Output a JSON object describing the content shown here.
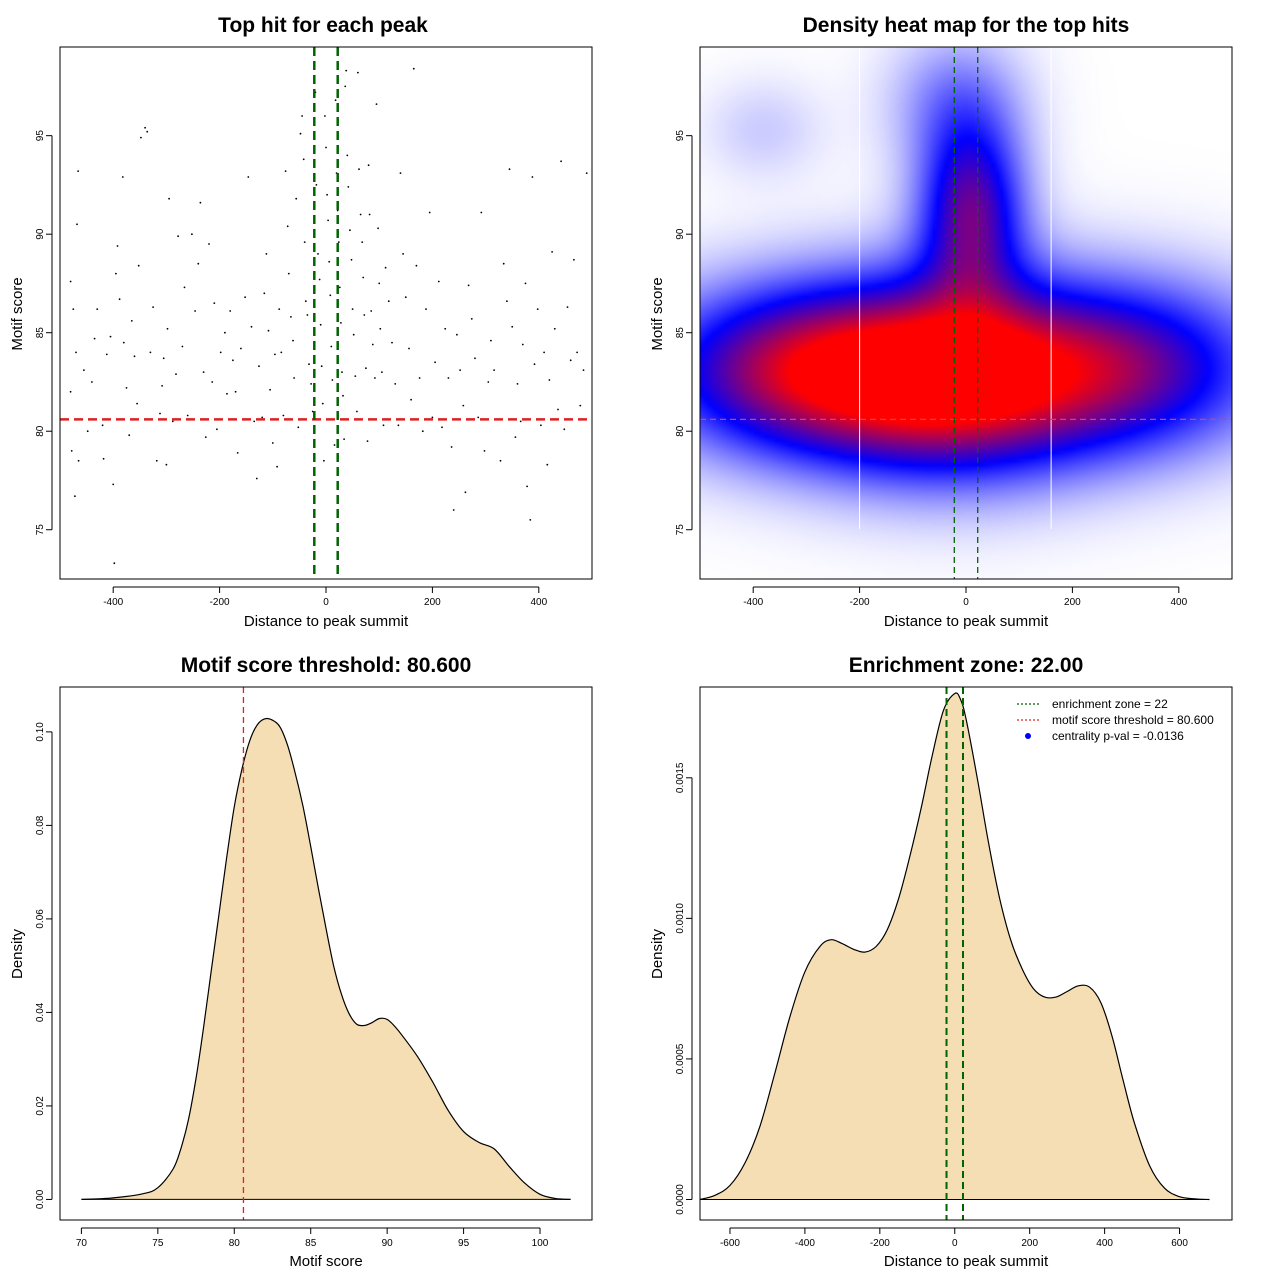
{
  "chart_data": [
    {
      "type": "scatter",
      "title": "Top hit for each peak",
      "xlabel": "Distance to peak summit",
      "ylabel": "Motif score",
      "xlim": [
        -500,
        500
      ],
      "ylim": [
        72.5,
        99.5
      ],
      "xticks": [
        -400,
        -200,
        0,
        200,
        400
      ],
      "yticks": [
        75,
        80,
        85,
        90,
        95
      ],
      "grid": false,
      "threshold": 80.6,
      "enrichment_zone": [
        -22,
        22
      ],
      "points": [
        [
          -472,
          76.7
        ],
        [
          -478,
          79.0
        ],
        [
          -465,
          78.5
        ],
        [
          -458,
          80.6
        ],
        [
          -480,
          82.0
        ],
        [
          -470,
          84.0
        ],
        [
          -475,
          86.2
        ],
        [
          -480,
          87.6
        ],
        [
          -468,
          90.5
        ],
        [
          -466,
          93.2
        ],
        [
          -455,
          83.1
        ],
        [
          -448,
          80.0
        ],
        [
          -440,
          82.5
        ],
        [
          -435,
          84.7
        ],
        [
          -430,
          86.2
        ],
        [
          -420,
          80.3
        ],
        [
          -418,
          78.6
        ],
        [
          -412,
          83.9
        ],
        [
          -405,
          84.8
        ],
        [
          -400,
          77.3
        ],
        [
          -398,
          73.3
        ],
        [
          -395,
          88.0
        ],
        [
          -392,
          89.4
        ],
        [
          -388,
          86.7
        ],
        [
          -382,
          92.9
        ],
        [
          -380,
          84.5
        ],
        [
          -375,
          82.2
        ],
        [
          -370,
          79.8
        ],
        [
          -365,
          85.6
        ],
        [
          -360,
          83.8
        ],
        [
          -355,
          81.4
        ],
        [
          -352,
          88.4
        ],
        [
          -348,
          94.9
        ],
        [
          -340,
          95.4
        ],
        [
          -336,
          95.2
        ],
        [
          -330,
          84.0
        ],
        [
          -325,
          86.3
        ],
        [
          -318,
          78.5
        ],
        [
          -312,
          80.9
        ],
        [
          -308,
          82.3
        ],
        [
          -305,
          83.7
        ],
        [
          -300,
          78.3
        ],
        [
          -298,
          85.2
        ],
        [
          -295,
          91.8
        ],
        [
          -288,
          80.5
        ],
        [
          -282,
          82.9
        ],
        [
          -278,
          89.9
        ],
        [
          -270,
          84.3
        ],
        [
          -266,
          87.3
        ],
        [
          -260,
          80.8
        ],
        [
          -252,
          90.0
        ],
        [
          -246,
          86.1
        ],
        [
          -240,
          88.5
        ],
        [
          -236,
          91.6
        ],
        [
          -230,
          83.0
        ],
        [
          -226,
          79.7
        ],
        [
          -220,
          89.5
        ],
        [
          -214,
          82.5
        ],
        [
          -210,
          86.5
        ],
        [
          -205,
          80.1
        ],
        [
          -198,
          84.0
        ],
        [
          -190,
          85.0
        ],
        [
          -186,
          81.9
        ],
        [
          -180,
          86.1
        ],
        [
          -175,
          83.6
        ],
        [
          -170,
          82.0
        ],
        [
          -166,
          78.9
        ],
        [
          -160,
          84.2
        ],
        [
          -152,
          86.8
        ],
        [
          -146,
          92.9
        ],
        [
          -140,
          85.3
        ],
        [
          -135,
          80.5
        ],
        [
          -130,
          77.6
        ],
        [
          -126,
          83.3
        ],
        [
          -120,
          80.7
        ],
        [
          -116,
          87.0
        ],
        [
          -112,
          89.0
        ],
        [
          -108,
          85.1
        ],
        [
          -105,
          82.1
        ],
        [
          -100,
          79.4
        ],
        [
          -96,
          83.9
        ],
        [
          -92,
          78.2
        ],
        [
          -88,
          86.2
        ],
        [
          -84,
          84.0
        ],
        [
          -80,
          80.8
        ],
        [
          -76,
          93.2
        ],
        [
          -72,
          90.4
        ],
        [
          -70,
          88.0
        ],
        [
          -66,
          85.8
        ],
        [
          -62,
          84.6
        ],
        [
          -60,
          82.7
        ],
        [
          -56,
          91.8
        ],
        [
          -52,
          80.2
        ],
        [
          -48,
          95.1
        ],
        [
          -45,
          96.0
        ],
        [
          -42,
          93.8
        ],
        [
          -40,
          89.6
        ],
        [
          -38,
          86.6
        ],
        [
          -35,
          85.9
        ],
        [
          -32,
          83.4
        ],
        [
          -28,
          82.4
        ],
        [
          -25,
          81.0
        ],
        [
          -22,
          79.2
        ],
        [
          -20,
          97.2
        ],
        [
          -18,
          92.5
        ],
        [
          -15,
          89.0
        ],
        [
          -12,
          87.7
        ],
        [
          -10,
          85.4
        ],
        [
          -8,
          83.3
        ],
        [
          -6,
          81.4
        ],
        [
          -4,
          78.5
        ],
        [
          -2,
          96.0
        ],
        [
          0,
          94.4
        ],
        [
          2,
          92.0
        ],
        [
          4,
          90.7
        ],
        [
          6,
          88.6
        ],
        [
          8,
          86.9
        ],
        [
          10,
          84.3
        ],
        [
          12,
          82.6
        ],
        [
          14,
          80.6
        ],
        [
          16,
          79.3
        ],
        [
          18,
          96.8
        ],
        [
          20,
          93.1
        ],
        [
          22,
          91.2
        ],
        [
          24,
          89.6
        ],
        [
          26,
          87.3
        ],
        [
          28,
          85.5
        ],
        [
          30,
          83.0
        ],
        [
          32,
          81.8
        ],
        [
          34,
          79.6
        ],
        [
          36,
          97.5
        ],
        [
          38,
          98.3
        ],
        [
          40,
          94.0
        ],
        [
          42,
          92.4
        ],
        [
          45,
          90.2
        ],
        [
          48,
          88.7
        ],
        [
          50,
          86.2
        ],
        [
          52,
          84.9
        ],
        [
          55,
          82.8
        ],
        [
          58,
          81.0
        ],
        [
          60,
          98.2
        ],
        [
          62,
          93.3
        ],
        [
          65,
          91.0
        ],
        [
          68,
          89.6
        ],
        [
          70,
          87.8
        ],
        [
          72,
          85.9
        ],
        [
          75,
          83.2
        ],
        [
          78,
          79.5
        ],
        [
          80,
          93.5
        ],
        [
          82,
          91.0
        ],
        [
          85,
          86.1
        ],
        [
          88,
          84.4
        ],
        [
          92,
          82.7
        ],
        [
          95,
          96.6
        ],
        [
          98,
          90.3
        ],
        [
          100,
          87.5
        ],
        [
          102,
          85.2
        ],
        [
          105,
          83.0
        ],
        [
          108,
          80.3
        ],
        [
          112,
          88.3
        ],
        [
          118,
          86.6
        ],
        [
          124,
          84.5
        ],
        [
          130,
          82.4
        ],
        [
          136,
          80.3
        ],
        [
          140,
          93.1
        ],
        [
          145,
          89.0
        ],
        [
          150,
          86.8
        ],
        [
          156,
          84.2
        ],
        [
          160,
          81.6
        ],
        [
          165,
          98.4
        ],
        [
          170,
          88.4
        ],
        [
          176,
          82.7
        ],
        [
          182,
          80.0
        ],
        [
          188,
          86.2
        ],
        [
          195,
          91.1
        ],
        [
          200,
          80.7
        ],
        [
          205,
          83.5
        ],
        [
          212,
          87.6
        ],
        [
          218,
          80.2
        ],
        [
          224,
          85.2
        ],
        [
          230,
          82.7
        ],
        [
          236,
          79.2
        ],
        [
          240,
          76.0
        ],
        [
          246,
          84.9
        ],
        [
          252,
          83.1
        ],
        [
          258,
          81.3
        ],
        [
          262,
          76.9
        ],
        [
          268,
          87.4
        ],
        [
          274,
          85.7
        ],
        [
          280,
          83.7
        ],
        [
          286,
          80.7
        ],
        [
          292,
          91.1
        ],
        [
          298,
          79.0
        ],
        [
          305,
          82.5
        ],
        [
          310,
          84.6
        ],
        [
          316,
          83.1
        ],
        [
          322,
          80.6
        ],
        [
          328,
          78.5
        ],
        [
          334,
          88.5
        ],
        [
          340,
          86.6
        ],
        [
          345,
          93.3
        ],
        [
          350,
          85.3
        ],
        [
          356,
          79.7
        ],
        [
          360,
          82.4
        ],
        [
          366,
          80.5
        ],
        [
          370,
          84.4
        ],
        [
          375,
          87.5
        ],
        [
          378,
          77.2
        ],
        [
          384,
          75.5
        ],
        [
          388,
          92.9
        ],
        [
          392,
          83.4
        ],
        [
          398,
          86.2
        ],
        [
          404,
          80.3
        ],
        [
          410,
          84.0
        ],
        [
          416,
          78.3
        ],
        [
          420,
          82.6
        ],
        [
          425,
          89.1
        ],
        [
          430,
          85.2
        ],
        [
          436,
          81.1
        ],
        [
          442,
          93.7
        ],
        [
          448,
          80.1
        ],
        [
          454,
          86.3
        ],
        [
          460,
          83.6
        ],
        [
          466,
          88.7
        ],
        [
          472,
          84.0
        ],
        [
          478,
          81.3
        ],
        [
          484,
          83.1
        ],
        [
          490,
          93.1
        ]
      ]
    },
    {
      "type": "heatmap",
      "title": "Density heat map for the top hits",
      "xlabel": "Distance to peak summit",
      "ylabel": "Motif score",
      "xlim": [
        -500,
        500
      ],
      "ylim": [
        72.5,
        99.5
      ],
      "xticks": [
        -400,
        -200,
        0,
        200,
        400
      ],
      "yticks": [
        75,
        80,
        85,
        90,
        95
      ],
      "threshold": 80.6,
      "enrichment_zone": [
        -22,
        22
      ],
      "white_lines": [
        -200,
        160
      ],
      "colors": [
        "#ffffff",
        "#0000ff",
        "#ff0000"
      ],
      "kernels": [
        {
          "x": -330,
          "y": 83.1,
          "sx": 190,
          "sy": 3.0,
          "w": 0.72
        },
        {
          "x": -30,
          "y": 82.7,
          "sx": 190,
          "sy": 3.4,
          "w": 0.98
        },
        {
          "x": 310,
          "y": 83.2,
          "sx": 190,
          "sy": 3.1,
          "w": 0.62
        },
        {
          "x": 10,
          "y": 91.2,
          "sx": 70,
          "sy": 3.2,
          "w": 0.66
        },
        {
          "x": -20,
          "y": 96.8,
          "sx": 90,
          "sy": 2.5,
          "w": 0.22
        },
        {
          "x": -380,
          "y": 95.3,
          "sx": 80,
          "sy": 1.8,
          "w": 0.1
        }
      ]
    },
    {
      "type": "area",
      "title": "Motif score threshold: 80.600",
      "xlabel": "Motif score",
      "ylabel": "Density",
      "xlim": [
        68.6,
        103.4
      ],
      "ylim": [
        -0.0044,
        0.1096
      ],
      "xticks": [
        70,
        75,
        80,
        85,
        90,
        95,
        100
      ],
      "yticks": [
        0.0,
        0.02,
        0.04,
        0.06,
        0.08,
        0.1
      ],
      "ytick_labels": [
        "0.00",
        "0.02",
        "0.04",
        "0.06",
        "0.08",
        "0.10"
      ],
      "threshold": 80.6,
      "fill": "#f5deb3",
      "x": [
        70,
        72,
        74,
        75,
        76,
        76.5,
        77,
        77.5,
        78,
        78.5,
        79,
        79.5,
        80,
        80.5,
        81,
        81.5,
        82,
        82.5,
        83,
        83.5,
        84,
        84.5,
        85,
        85.5,
        86,
        86.5,
        87,
        87.5,
        88,
        88.5,
        89,
        89.5,
        90,
        90.5,
        91,
        92,
        93,
        94,
        95,
        96,
        97,
        98,
        99,
        100,
        101,
        102
      ],
      "y": [
        0.0,
        0.0003,
        0.0012,
        0.0025,
        0.0065,
        0.0108,
        0.017,
        0.026,
        0.037,
        0.049,
        0.061,
        0.073,
        0.084,
        0.092,
        0.098,
        0.1015,
        0.1028,
        0.1025,
        0.101,
        0.097,
        0.091,
        0.084,
        0.0755,
        0.0665,
        0.058,
        0.05,
        0.044,
        0.0398,
        0.0375,
        0.0372,
        0.0378,
        0.0387,
        0.0385,
        0.037,
        0.035,
        0.0305,
        0.025,
        0.019,
        0.0145,
        0.0122,
        0.0108,
        0.007,
        0.0035,
        0.0011,
        0.0002,
        0.0
      ]
    },
    {
      "type": "area",
      "title": "Enrichment zone: 22.00",
      "xlabel": "Distance to peak summit",
      "ylabel": "Density",
      "xlim": [
        -680,
        740
      ],
      "ylim": [
        -7.3e-05,
        0.001823
      ],
      "xticks": [
        -600,
        -400,
        -200,
        0,
        200,
        400,
        600
      ],
      "yticks": [
        0.0,
        0.0005,
        0.001,
        0.0015
      ],
      "ytick_labels": [
        "0.0000",
        "0.0005",
        "0.0010",
        "0.0015"
      ],
      "enrichment_zone": [
        -22,
        22
      ],
      "fill": "#f5deb3",
      "x": [
        -680,
        -640,
        -600,
        -560,
        -520,
        -480,
        -440,
        -400,
        -360,
        -330,
        -300,
        -270,
        -240,
        -210,
        -180,
        -150,
        -120,
        -90,
        -60,
        -30,
        0,
        15,
        30,
        60,
        90,
        120,
        150,
        180,
        210,
        240,
        270,
        300,
        330,
        360,
        390,
        420,
        450,
        480,
        520,
        560,
        600,
        640,
        680
      ],
      "y": [
        0.0,
        1.5e-05,
        5e-05,
        0.00013,
        0.00026,
        0.00045,
        0.00065,
        0.00081,
        0.0009,
        0.000924,
        0.00091,
        0.00089,
        0.00088,
        0.0009,
        0.00096,
        0.00107,
        0.00122,
        0.00139,
        0.00158,
        0.00174,
        0.0018,
        0.00178,
        0.00171,
        0.0015,
        0.00127,
        0.00107,
        0.00092,
        0.00082,
        0.00075,
        0.00072,
        0.00072,
        0.00074,
        0.00076,
        0.000755,
        0.0007,
        0.00058,
        0.00042,
        0.00027,
        0.00012,
        4e-05,
        1e-05,
        2e-06,
        0.0
      ],
      "legend": {
        "position": "top-right",
        "entries": [
          {
            "label": "enrichment zone = 22",
            "color": "#006400",
            "style": "dotted-line"
          },
          {
            "label": "motif score threshold = 80.600",
            "color": "#ee2222",
            "style": "dotted-line"
          },
          {
            "label": "centrality p-val = -0.0136",
            "color": "#0000ff",
            "style": "point"
          }
        ]
      }
    }
  ]
}
